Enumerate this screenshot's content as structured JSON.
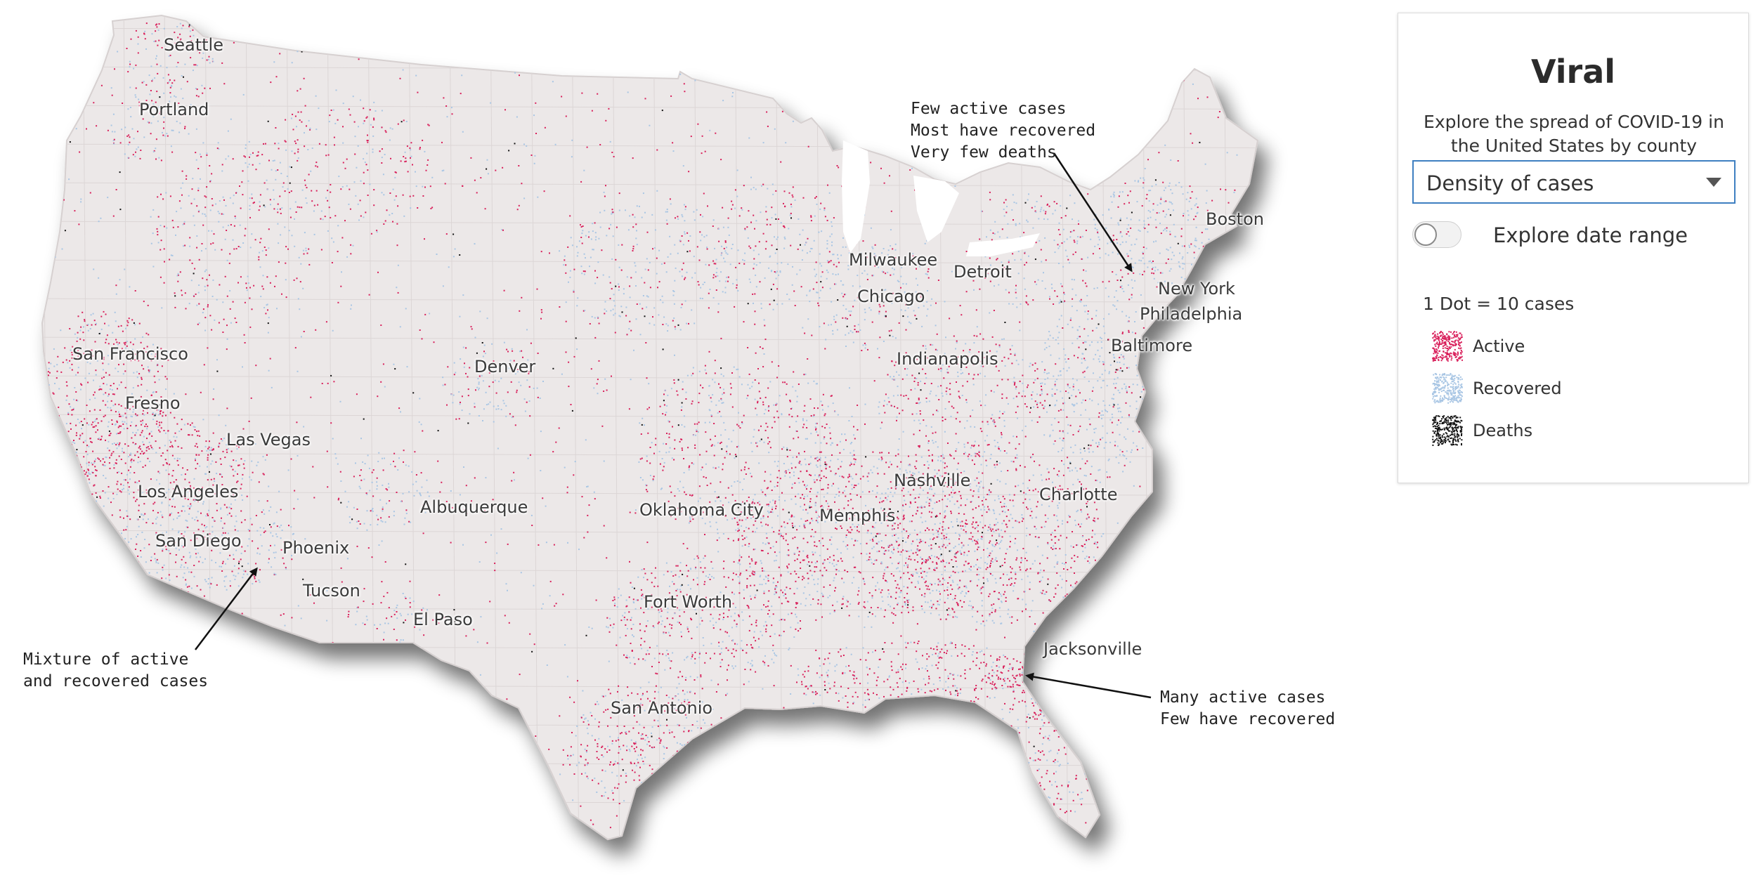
{
  "map": {
    "cities": [
      {
        "name": "Seattle"
      },
      {
        "name": "Portland"
      },
      {
        "name": "San Francisco"
      },
      {
        "name": "Fresno"
      },
      {
        "name": "Las Vegas"
      },
      {
        "name": "Los Angeles"
      },
      {
        "name": "San Diego"
      },
      {
        "name": "Phoenix"
      },
      {
        "name": "Tucson"
      },
      {
        "name": "Denver"
      },
      {
        "name": "Albuquerque"
      },
      {
        "name": "El Paso"
      },
      {
        "name": "Oklahoma City"
      },
      {
        "name": "Fort Worth"
      },
      {
        "name": "San Antonio"
      },
      {
        "name": "Memphis"
      },
      {
        "name": "Nashville"
      },
      {
        "name": "Chicago"
      },
      {
        "name": "Milwaukee"
      },
      {
        "name": "Detroit"
      },
      {
        "name": "Indianapolis"
      },
      {
        "name": "Charlotte"
      },
      {
        "name": "Jacksonville"
      },
      {
        "name": "Baltimore"
      },
      {
        "name": "Philadelphia"
      },
      {
        "name": "New York"
      },
      {
        "name": "Boston"
      }
    ],
    "annotations": {
      "northeast": "Few active cases\nMost have recovered\nVery few deaths",
      "southwest": "Mixture of active\nand recovered cases",
      "southeast": "Many active cases\nFew have recovered"
    },
    "colors": {
      "land": "#ece8e8",
      "active": "#d9205b",
      "recovered": "#a9c6e4",
      "deaths": "#111111"
    }
  },
  "panel": {
    "title": "Viral",
    "description": "Explore the spread of COVID-19 in the United States by county",
    "select_value": "Density of cases",
    "toggle_label": "Explore date range",
    "toggle_on": false,
    "dot_scale": "1 Dot = 10 cases",
    "legend": [
      {
        "label": "Active",
        "icon": "active-dots-icon",
        "color": "#d9205b"
      },
      {
        "label": "Recovered",
        "icon": "recovered-dots-icon",
        "color": "#a9c6e4"
      },
      {
        "label": "Deaths",
        "icon": "deaths-dots-icon",
        "color": "#111111"
      }
    ]
  }
}
